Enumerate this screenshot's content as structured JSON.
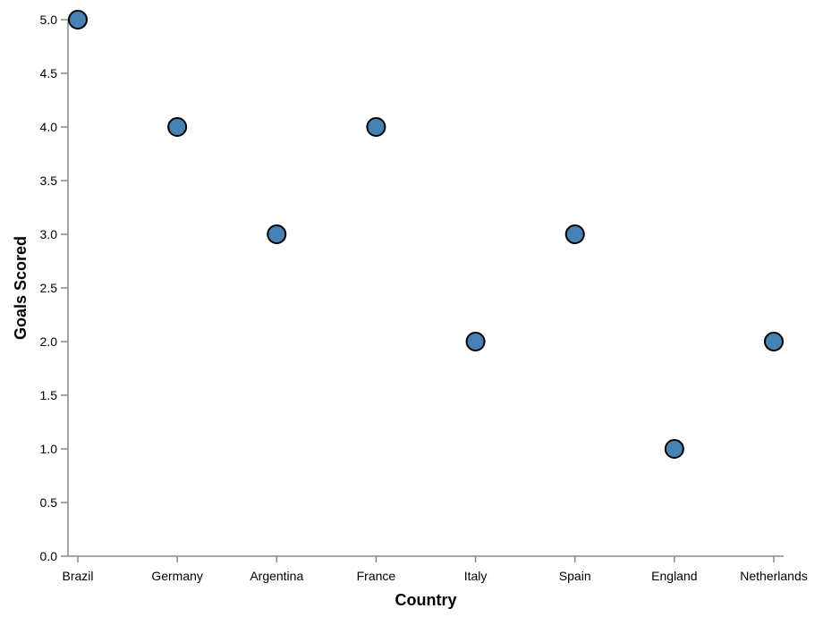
{
  "chart_data": {
    "type": "scatter",
    "xlabel": "Country",
    "ylabel": "Goals Scored",
    "categories": [
      "Brazil",
      "Germany",
      "Argentina",
      "France",
      "Italy",
      "Spain",
      "England",
      "Netherlands"
    ],
    "values": [
      5,
      4,
      3,
      4,
      2,
      3,
      1,
      2
    ],
    "ylim": [
      0,
      5
    ],
    "yticks": [
      "0.0",
      "0.5",
      "1.0",
      "1.5",
      "2.0",
      "2.5",
      "3.0",
      "3.5",
      "4.0",
      "4.5",
      "5.0"
    ],
    "grid": false,
    "colors": {
      "point": "#4682b4",
      "point_stroke": "#000000",
      "axis": "#888888"
    }
  }
}
